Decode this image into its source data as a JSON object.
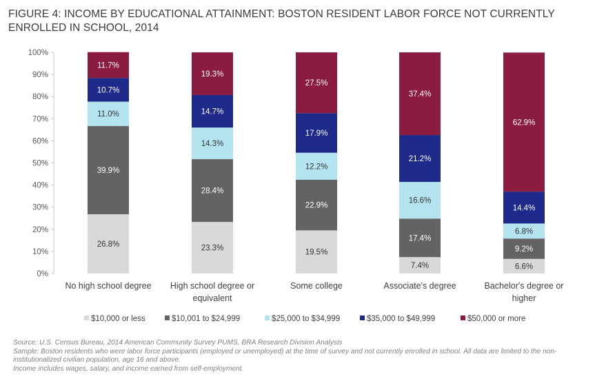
{
  "title": "FIGURE 4: INCOME BY EDUCATIONAL ATTAINMENT: BOSTON RESIDENT LABOR FORCE NOT CURRENTLY ENROLLED IN SCHOOL, 2014",
  "footnotes": {
    "source": "Source: U.S. Census Bureau, 2014 American Community Survey PUMS, BRA Research Division Analysis",
    "sample": "Sample: Boston residents who were labor force participants (employed or unemployed) at the time of survey and not currently enrolled in school. All data are limited to the non-institutionalized civilian population, age 16 and above.",
    "income": "Income includes wages, salary, and income earned from self-employment."
  },
  "chart_data": {
    "type": "bar",
    "stacked": true,
    "categories": [
      [
        "No high school degree"
      ],
      [
        "High school degree or",
        "equivalent"
      ],
      [
        "Some college"
      ],
      [
        "Associate's degree"
      ],
      [
        "Bachelor's degree or",
        "higher"
      ]
    ],
    "series": [
      {
        "name": "$10,000 or less",
        "color": "#d9d9d9",
        "label_color": "#333333",
        "values": [
          26.8,
          23.3,
          19.5,
          7.4,
          6.6
        ]
      },
      {
        "name": "$10,001 to $24,999",
        "color": "#636363",
        "label_color": "#ffffff",
        "values": [
          39.9,
          28.4,
          22.9,
          17.4,
          9.2
        ]
      },
      {
        "name": "$25,000 to $34,999",
        "color": "#b4e4f0",
        "label_color": "#333333",
        "values": [
          11.0,
          14.3,
          12.2,
          16.6,
          6.8
        ]
      },
      {
        "name": "$35,000 to $49,999",
        "color": "#1d2a8a",
        "label_color": "#ffffff",
        "values": [
          10.7,
          14.7,
          17.9,
          21.2,
          14.4
        ]
      },
      {
        "name": "$50,000 or more",
        "color": "#8a1c3f",
        "label_color": "#ffffff",
        "values": [
          11.7,
          19.3,
          27.5,
          37.4,
          62.9
        ]
      }
    ],
    "data_labels": [
      [
        "26.8%",
        "23.3%",
        "19.5%",
        "7.4%",
        "6.6%"
      ],
      [
        "39.9%",
        "28.4%",
        "22.9%",
        "17.4%",
        "9.2%"
      ],
      [
        "11.0%",
        "14.3%",
        "12.2%",
        "16.6%",
        "6.8%"
      ],
      [
        "10.7%",
        "14.7%",
        "17.9%",
        "21.2%",
        "14.4%"
      ],
      [
        "11.7%",
        "19.3%",
        "27.5%",
        "37.4%",
        "62.9%"
      ]
    ],
    "y_ticks": [
      "0%",
      "10%",
      "20%",
      "30%",
      "40%",
      "50%",
      "60%",
      "70%",
      "80%",
      "90%",
      "100%"
    ],
    "ylim": [
      0,
      100
    ],
    "grid": false,
    "legend_position": "bottom"
  }
}
